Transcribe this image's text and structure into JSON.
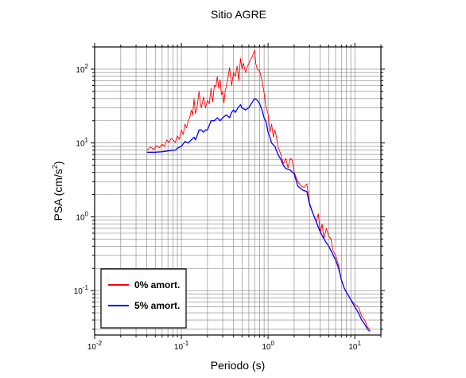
{
  "chart_data": {
    "type": "line",
    "title": "Sitio AGRE",
    "xlabel": "Periodo (s)",
    "ylabel": "PSA (cm/s²)",
    "x_scale": "log",
    "y_scale": "log",
    "xlim": [
      0.01,
      20
    ],
    "ylim": [
      0.025,
      200
    ],
    "grid": true,
    "legend_position": "bottom-left",
    "x_ticks": [
      {
        "base": "10",
        "exp": "-2",
        "value": 0.01
      },
      {
        "base": "10",
        "exp": "-1",
        "value": 0.1
      },
      {
        "base": "10",
        "exp": "0",
        "value": 1
      },
      {
        "base": "10",
        "exp": "1",
        "value": 10
      }
    ],
    "y_ticks": [
      {
        "base": "10",
        "exp": "-1",
        "value": 0.1
      },
      {
        "base": "10",
        "exp": "0",
        "value": 1
      },
      {
        "base": "10",
        "exp": "1",
        "value": 10
      },
      {
        "base": "10",
        "exp": "2",
        "value": 100
      }
    ],
    "series": [
      {
        "name": "0% amort.",
        "color": "#ff0000",
        "points": [
          [
            0.04,
            8.0
          ],
          [
            0.044,
            8.8
          ],
          [
            0.048,
            8.2
          ],
          [
            0.052,
            9.2
          ],
          [
            0.056,
            8.6
          ],
          [
            0.06,
            9.6
          ],
          [
            0.064,
            9.0
          ],
          [
            0.068,
            11.0
          ],
          [
            0.072,
            10.2
          ],
          [
            0.076,
            11.5
          ],
          [
            0.08,
            11.0
          ],
          [
            0.085,
            10.2
          ],
          [
            0.09,
            12.5
          ],
          [
            0.095,
            11.2
          ],
          [
            0.1,
            15.0
          ],
          [
            0.105,
            13.0
          ],
          [
            0.11,
            18.0
          ],
          [
            0.115,
            16.0
          ],
          [
            0.12,
            20.0
          ],
          [
            0.125,
            22.0
          ],
          [
            0.13,
            28.0
          ],
          [
            0.135,
            24.0
          ],
          [
            0.14,
            40.0
          ],
          [
            0.145,
            25.0
          ],
          [
            0.15,
            28.0
          ],
          [
            0.16,
            50.0
          ],
          [
            0.165,
            35.0
          ],
          [
            0.17,
            30.0
          ],
          [
            0.18,
            42.0
          ],
          [
            0.19,
            30.0
          ],
          [
            0.2,
            38.0
          ],
          [
            0.21,
            34.0
          ],
          [
            0.22,
            55.0
          ],
          [
            0.23,
            36.0
          ],
          [
            0.24,
            60.0
          ],
          [
            0.25,
            58.0
          ],
          [
            0.26,
            80.0
          ],
          [
            0.27,
            55.0
          ],
          [
            0.28,
            72.0
          ],
          [
            0.29,
            45.0
          ],
          [
            0.3,
            50.0
          ],
          [
            0.31,
            35.0
          ],
          [
            0.32,
            50.0
          ],
          [
            0.34,
            70.0
          ],
          [
            0.36,
            105.0
          ],
          [
            0.38,
            60.0
          ],
          [
            0.4,
            90.0
          ],
          [
            0.42,
            80.0
          ],
          [
            0.44,
            110.0
          ],
          [
            0.46,
            70.0
          ],
          [
            0.48,
            140.0
          ],
          [
            0.5,
            100.0
          ],
          [
            0.52,
            120.0
          ],
          [
            0.55,
            90.0
          ],
          [
            0.58,
            110.0
          ],
          [
            0.62,
            130.0
          ],
          [
            0.66,
            150.0
          ],
          [
            0.7,
            180.0
          ],
          [
            0.72,
            120.0
          ],
          [
            0.75,
            100.0
          ],
          [
            0.8,
            95.0
          ],
          [
            0.85,
            70.0
          ],
          [
            0.9,
            48.0
          ],
          [
            0.95,
            30.0
          ],
          [
            1.0,
            25.0
          ],
          [
            1.05,
            14.0
          ],
          [
            1.1,
            18.0
          ],
          [
            1.15,
            12.0
          ],
          [
            1.2,
            15.0
          ],
          [
            1.25,
            12.0
          ],
          [
            1.3,
            9.0
          ],
          [
            1.4,
            7.0
          ],
          [
            1.5,
            5.2
          ],
          [
            1.6,
            6.2
          ],
          [
            1.7,
            4.6
          ],
          [
            1.8,
            6.2
          ],
          [
            1.9,
            5.8
          ],
          [
            2.0,
            4.0
          ],
          [
            2.2,
            3.0
          ],
          [
            2.4,
            2.6
          ],
          [
            2.6,
            2.5
          ],
          [
            2.8,
            2.8
          ],
          [
            3.0,
            1.6
          ],
          [
            3.2,
            1.2
          ],
          [
            3.4,
            1.0
          ],
          [
            3.6,
            0.85
          ],
          [
            3.8,
            1.1
          ],
          [
            4.0,
            0.6
          ],
          [
            4.2,
            0.8
          ],
          [
            4.4,
            0.5
          ],
          [
            4.7,
            0.7
          ],
          [
            5.0,
            0.55
          ],
          [
            5.3,
            0.5
          ],
          [
            5.6,
            0.35
          ],
          [
            6.0,
            0.3
          ],
          [
            6.5,
            0.22
          ],
          [
            7.0,
            0.14
          ],
          [
            7.5,
            0.11
          ],
          [
            8.0,
            0.095
          ],
          [
            8.5,
            0.085
          ],
          [
            9.0,
            0.075
          ],
          [
            9.5,
            0.07
          ],
          [
            10.0,
            0.065
          ],
          [
            11.0,
            0.06
          ],
          [
            12.0,
            0.045
          ],
          [
            13.0,
            0.04
          ],
          [
            14.0,
            0.032
          ],
          [
            15.0,
            0.03
          ]
        ]
      },
      {
        "name": "5% amort.",
        "color": "#0000ff",
        "points": [
          [
            0.04,
            7.5
          ],
          [
            0.05,
            7.5
          ],
          [
            0.06,
            7.6
          ],
          [
            0.07,
            7.8
          ],
          [
            0.08,
            8.0
          ],
          [
            0.085,
            8.0
          ],
          [
            0.09,
            8.5
          ],
          [
            0.1,
            9.0
          ],
          [
            0.11,
            10.5
          ],
          [
            0.12,
            10.0
          ],
          [
            0.13,
            11.0
          ],
          [
            0.14,
            12.0
          ],
          [
            0.145,
            11.0
          ],
          [
            0.15,
            12.0
          ],
          [
            0.16,
            15.0
          ],
          [
            0.17,
            15.0
          ],
          [
            0.18,
            14.0
          ],
          [
            0.19,
            15.0
          ],
          [
            0.2,
            15.0
          ],
          [
            0.22,
            20.0
          ],
          [
            0.24,
            20.0
          ],
          [
            0.26,
            22.0
          ],
          [
            0.28,
            20.0
          ],
          [
            0.3,
            22.0
          ],
          [
            0.33,
            24.0
          ],
          [
            0.36,
            22.0
          ],
          [
            0.38,
            26.0
          ],
          [
            0.4,
            28.0
          ],
          [
            0.42,
            26.0
          ],
          [
            0.45,
            30.0
          ],
          [
            0.48,
            33.0
          ],
          [
            0.5,
            30.0
          ],
          [
            0.55,
            28.0
          ],
          [
            0.6,
            30.0
          ],
          [
            0.65,
            35.0
          ],
          [
            0.7,
            40.0
          ],
          [
            0.75,
            38.0
          ],
          [
            0.8,
            34.0
          ],
          [
            0.85,
            28.0
          ],
          [
            0.9,
            22.0
          ],
          [
            0.95,
            19.0
          ],
          [
            1.0,
            14.0
          ],
          [
            1.05,
            12.0
          ],
          [
            1.1,
            10.0
          ],
          [
            1.2,
            9.0
          ],
          [
            1.3,
            7.0
          ],
          [
            1.4,
            6.0
          ],
          [
            1.5,
            5.0
          ],
          [
            1.6,
            4.5
          ],
          [
            1.8,
            4.3
          ],
          [
            2.0,
            3.8
          ],
          [
            2.2,
            2.6
          ],
          [
            2.5,
            2.3
          ],
          [
            2.8,
            2.2
          ],
          [
            3.0,
            1.5
          ],
          [
            3.3,
            1.1
          ],
          [
            3.6,
            0.85
          ],
          [
            4.0,
            0.62
          ],
          [
            4.5,
            0.48
          ],
          [
            5.0,
            0.4
          ],
          [
            5.5,
            0.32
          ],
          [
            6.0,
            0.26
          ],
          [
            6.5,
            0.2
          ],
          [
            7.0,
            0.14
          ],
          [
            7.5,
            0.11
          ],
          [
            8.0,
            0.095
          ],
          [
            9.0,
            0.075
          ],
          [
            10.0,
            0.06
          ],
          [
            11.0,
            0.05
          ],
          [
            12.0,
            0.04
          ],
          [
            13.0,
            0.035
          ],
          [
            14.0,
            0.03
          ],
          [
            15.0,
            0.028
          ]
        ]
      }
    ]
  }
}
